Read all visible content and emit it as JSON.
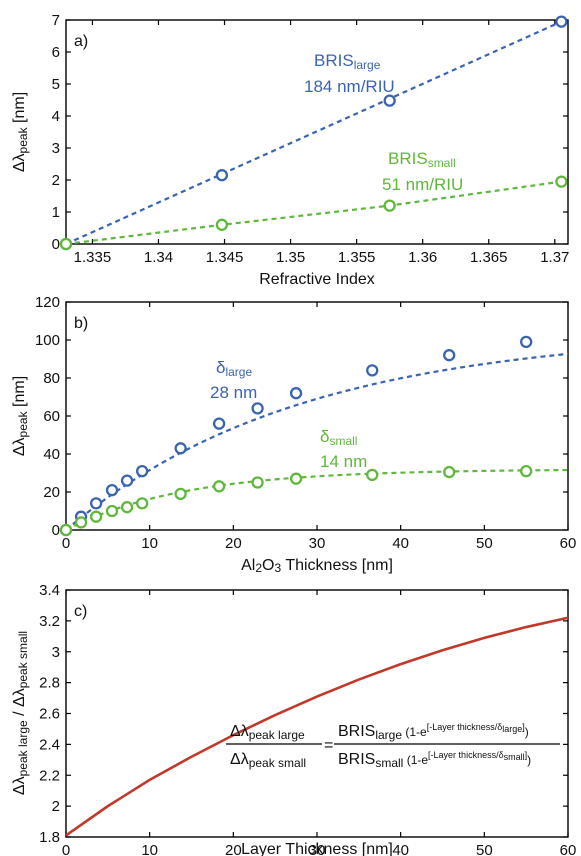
{
  "colors": {
    "blue": "#3a64b0",
    "green": "#5fb83c",
    "red": "#c0392b",
    "axis": "#000000"
  },
  "chart_data": [
    {
      "id": "a",
      "type": "line",
      "panel_label": "a)",
      "xlabel": "Refractive Index",
      "ylabel_main": "Δλ",
      "ylabel_sub": "peak",
      "ylabel_unit": " [nm]",
      "xlim": [
        1.333,
        1.371
      ],
      "ylim": [
        0,
        7
      ],
      "xticks": [
        1.335,
        1.34,
        1.345,
        1.35,
        1.355,
        1.36,
        1.365,
        1.37
      ],
      "xtick_labels": [
        "1.335",
        "1.34",
        "1.345",
        "1.35",
        "1.355",
        "1.36",
        "1.365",
        "1.37"
      ],
      "yticks": [
        0,
        1,
        2,
        3,
        4,
        5,
        6,
        7
      ],
      "ytick_labels": [
        "0",
        "1",
        "2",
        "3",
        "4",
        "5",
        "6",
        "7"
      ],
      "series": [
        {
          "color": "blue",
          "x": [
            1.333,
            1.3448,
            1.3575,
            1.3705
          ],
          "y": [
            0,
            2.15,
            4.48,
            6.95
          ],
          "fit_x": [
            1.333,
            1.3705
          ],
          "fit_y": [
            0,
            6.95
          ],
          "label_main": "BRIS",
          "label_sub": "large",
          "label_value": "184 nm/RIU"
        },
        {
          "color": "green",
          "x": [
            1.333,
            1.3448,
            1.3575,
            1.3705
          ],
          "y": [
            0,
            0.6,
            1.2,
            1.95
          ],
          "fit_x": [
            1.333,
            1.3448,
            1.3575,
            1.3705
          ],
          "fit_y": [
            0,
            0.6,
            1.2,
            1.95
          ],
          "label_main": "BRIS",
          "label_sub": "small",
          "label_value": "51 nm/RIU"
        }
      ]
    },
    {
      "id": "b",
      "type": "scatter",
      "panel_label": "b)",
      "xlabel_parts": [
        "Al",
        "2",
        "O",
        "3",
        " Thickness [nm]"
      ],
      "ylabel_main": "Δλ",
      "ylabel_sub": "peak",
      "ylabel_unit": " [nm]",
      "xlim": [
        0,
        60
      ],
      "ylim": [
        0,
        120
      ],
      "xticks": [
        0,
        10,
        20,
        30,
        40,
        50,
        60
      ],
      "xtick_labels": [
        "0",
        "10",
        "20",
        "30",
        "40",
        "50",
        "60"
      ],
      "yticks": [
        0,
        20,
        40,
        60,
        80,
        100,
        120
      ],
      "ytick_labels": [
        "0",
        "20",
        "40",
        "60",
        "80",
        "100",
        "120"
      ],
      "series": [
        {
          "color": "blue",
          "x": [
            0,
            1.8,
            3.6,
            5.5,
            7.3,
            9.1,
            13.7,
            18.3,
            22.9,
            27.5,
            36.6,
            45.8,
            55
          ],
          "y": [
            0,
            7,
            14,
            21,
            26,
            31,
            43,
            56,
            64,
            72,
            84,
            92,
            99
          ],
          "amplitude": 105,
          "delta": 28,
          "label_main": "δ",
          "label_sub": "large",
          "label_value": "28 nm"
        },
        {
          "color": "green",
          "x": [
            0,
            1.8,
            3.6,
            5.5,
            7.3,
            9.1,
            13.7,
            18.3,
            22.9,
            27.5,
            36.6,
            45.8,
            55
          ],
          "y": [
            0,
            4,
            7,
            10,
            12,
            14,
            19,
            23,
            25,
            27,
            29,
            30.5,
            31
          ],
          "amplitude": 32,
          "delta": 14,
          "label_main": "δ",
          "label_sub": "small",
          "label_value": "14 nm"
        }
      ]
    },
    {
      "id": "c",
      "type": "line",
      "panel_label": "c)",
      "xlabel": "Layer Thickness [nm]",
      "ylabel_parts": [
        "Δλ",
        "peak large",
        " / Δλ",
        "peak small"
      ],
      "xlim": [
        0,
        60
      ],
      "ylim": [
        1.8,
        3.4
      ],
      "xticks": [
        0,
        10,
        20,
        30,
        40,
        50,
        60
      ],
      "xtick_labels": [
        "0",
        "10",
        "20",
        "30",
        "40",
        "50",
        "60"
      ],
      "yticks": [
        1.8,
        2,
        2.2,
        2.4,
        2.6,
        2.8,
        3,
        3.2,
        3.4
      ],
      "ytick_labels": [
        "1.8",
        "2",
        "2.2",
        "2.4",
        "2.6",
        "2.8",
        "3",
        "3.2",
        "3.4"
      ],
      "series": [
        {
          "color": "red",
          "x": [
            0,
            5,
            10,
            15,
            20,
            25,
            30,
            35,
            40,
            45,
            50,
            55,
            60
          ],
          "y": [
            1.81,
            2.0,
            2.17,
            2.32,
            2.46,
            2.59,
            2.71,
            2.82,
            2.92,
            3.01,
            3.09,
            3.16,
            3.22
          ]
        }
      ],
      "equation": {
        "lhs_num_main": "Δλ",
        "lhs_num_sub": "peak large",
        "lhs_den_main": "Δλ",
        "lhs_den_sub": "peak small",
        "equals": "=",
        "rhs_num_main": "BRIS",
        "rhs_num_sub": "large",
        "rhs_num_tail": " (1-e",
        "rhs_num_exp": "[-Layer thickness/δ",
        "rhs_num_exp_sub": "large",
        "rhs_num_exp_end": "]",
        "rhs_num_close": ")",
        "rhs_den_main": "BRIS",
        "rhs_den_sub": "small",
        "rhs_den_tail": " (1-e",
        "rhs_den_exp": "[-Layer thickness/δ",
        "rhs_den_exp_sub": "small",
        "rhs_den_exp_end": "]",
        "rhs_den_close": ")"
      }
    }
  ]
}
